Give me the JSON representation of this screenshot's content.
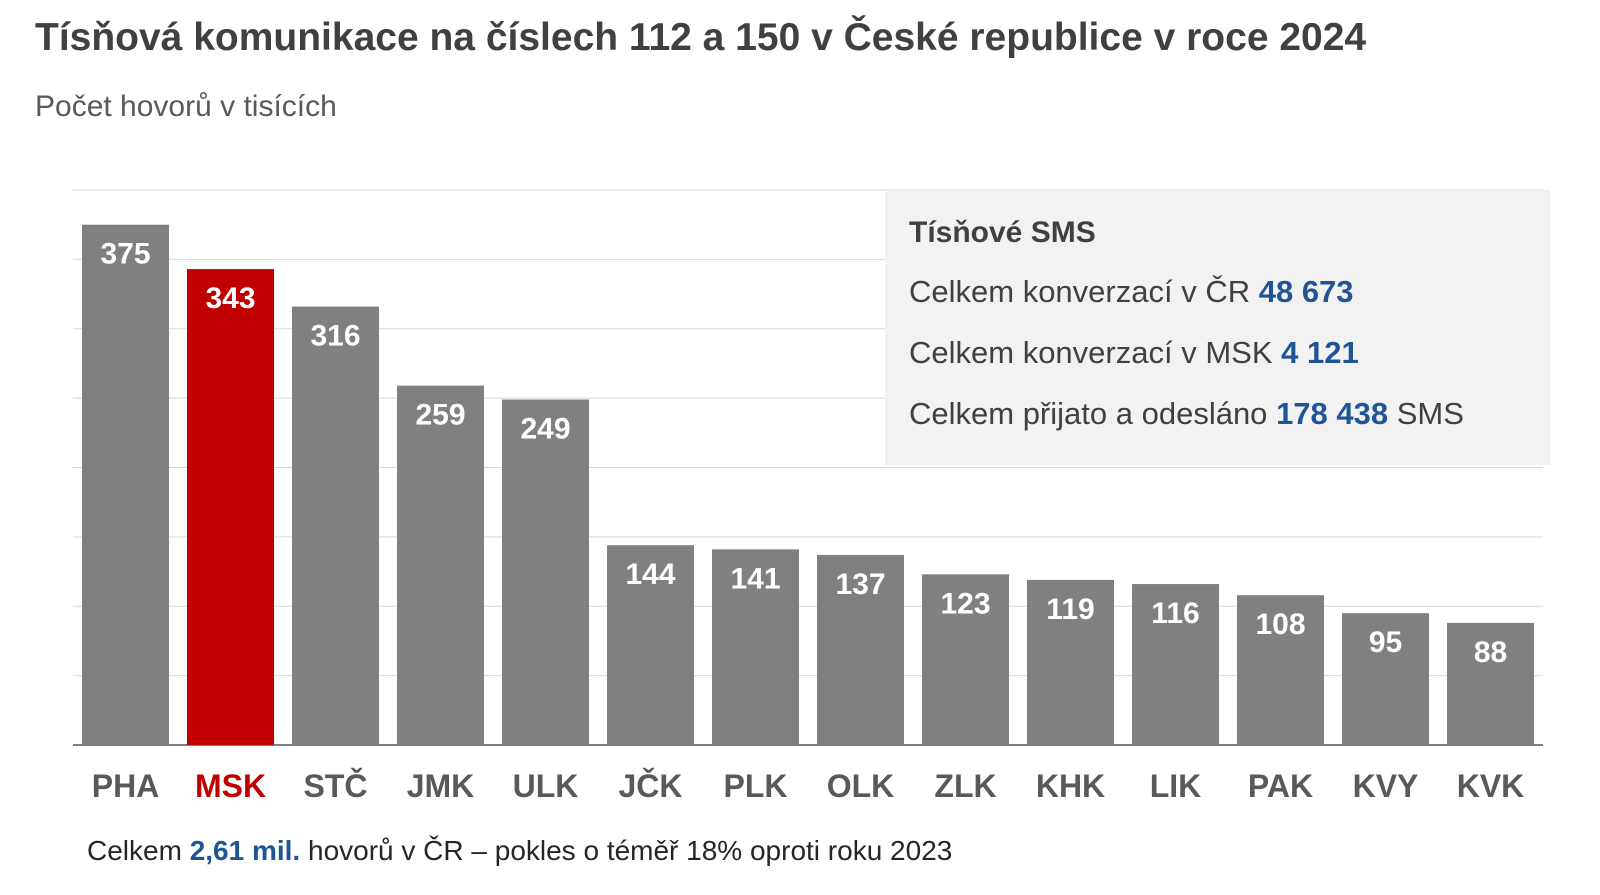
{
  "header": {
    "title": "Tísňová komunikace na číslech 112 a 150 v České republice v roce 2024",
    "subtitle": "Počet hovorů v tisících"
  },
  "sms": {
    "title": "Tísňové SMS",
    "line1": {
      "label": "Celkem konverzací v ČR",
      "value": "48 673"
    },
    "line2": {
      "label": "Celkem konverzací v MSK",
      "value": "4 121"
    },
    "line3": {
      "label": "Celkem přijato a odesláno",
      "value": "178 438",
      "suffix": "SMS"
    }
  },
  "footer": {
    "prefix": "Celkem",
    "value": "2,61 mil.",
    "suffix": "hovorů v ČR – pokles o téměř 18% oproti roku 2023"
  },
  "colors": {
    "bar": "#808080",
    "highlight": "#c00000",
    "grid": "#d9d9d9",
    "axis": "#808080",
    "accent": "#1f5496"
  },
  "chart_data": {
    "type": "bar",
    "title": "Tísňová komunikace na číslech 112 a 150 v České republice v roce 2024",
    "subtitle": "Počet hovorů v tisících",
    "categories": [
      "PHA",
      "MSK",
      "STČ",
      "JMK",
      "ULK",
      "JČK",
      "PLK",
      "OLK",
      "ZLK",
      "KHK",
      "LIK",
      "PAK",
      "KVY",
      "KVK"
    ],
    "values": [
      375,
      343,
      316,
      259,
      249,
      144,
      141,
      137,
      123,
      119,
      116,
      108,
      95,
      88
    ],
    "highlight": "MSK",
    "ylim": [
      0,
      400
    ],
    "grid": true,
    "data_labels": true
  }
}
